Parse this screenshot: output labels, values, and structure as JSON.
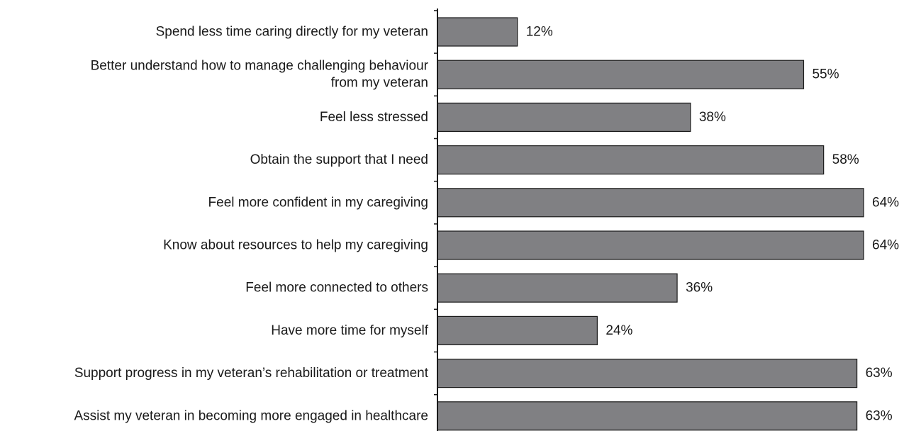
{
  "chart_data": {
    "type": "bar",
    "orientation": "horizontal",
    "title": "",
    "xlabel": "",
    "ylabel": "",
    "xlim": [
      0,
      64
    ],
    "grid": false,
    "categories": [
      "Spend less time caring directly for my veteran",
      "Better understand how to manage challenging behaviour from my veteran",
      "Feel less stressed",
      "Obtain the support that I need",
      "Feel more confident in my caregiving",
      "Know about resources to help my caregiving",
      "Feel more connected to others",
      "Have more time for myself",
      "Support progress in my veteran’s rehabilitation or treatment",
      "Assist my veteran in becoming more engaged in healthcare"
    ],
    "category_lines": [
      [
        "Spend less time caring directly for my veteran"
      ],
      [
        "Better understand how to manage challenging behaviour",
        "from my veteran"
      ],
      [
        "Feel less stressed"
      ],
      [
        "Obtain the support that I need"
      ],
      [
        "Feel more confident in my caregiving"
      ],
      [
        "Know about resources to help my caregiving"
      ],
      [
        "Feel more connected to others"
      ],
      [
        "Have more time for myself"
      ],
      [
        "Support progress in my veteran’s rehabilitation or treatment"
      ],
      [
        "Assist my veteran in becoming more engaged in healthcare"
      ]
    ],
    "values": [
      12,
      55,
      38,
      58,
      64,
      64,
      36,
      24,
      63,
      63
    ],
    "value_labels": [
      "12%",
      "55%",
      "38%",
      "58%",
      "64%",
      "64%",
      "36%",
      "24%",
      "63%",
      "63%"
    ],
    "colors": {
      "bar_fill": "#808083",
      "bar_stroke": "#1a1a1a",
      "axis": "#1a1a1a",
      "text": "#1a1a1a"
    }
  }
}
